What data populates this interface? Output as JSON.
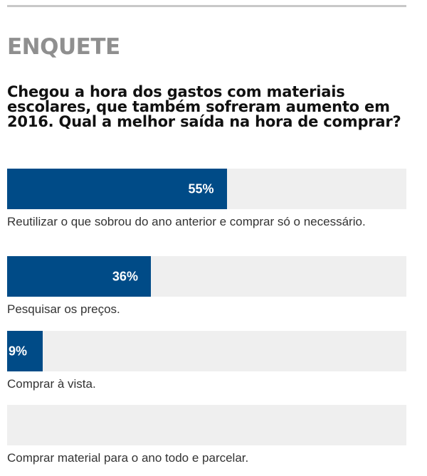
{
  "poll": {
    "heading": "ENQUETE",
    "question": "Chegou a hora dos gastos com materiais escolares, que também sofreram aumento em 2016. Qual a melhor saída na hora de comprar?",
    "bar_fill_color": "#004b87",
    "bar_track_color": "#efefef",
    "options": [
      {
        "label": "Reutilizar o que sobrou do ano anterior e comprar só o necessário.",
        "percent": 55,
        "percent_label": "55%"
      },
      {
        "label": "Pesquisar os preços.",
        "percent": 36,
        "percent_label": "36%"
      },
      {
        "label": "Comprar à vista.",
        "percent": 9,
        "percent_label": "9%"
      },
      {
        "label": "Comprar material para o ano todo e parcelar.",
        "percent": 0,
        "percent_label": ""
      }
    ]
  }
}
